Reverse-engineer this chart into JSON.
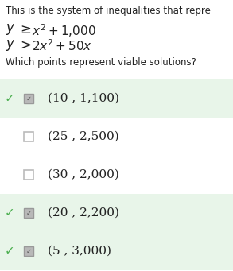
{
  "title_text": "This is the system of inequalities that repre",
  "question": "Which points represent viable solutions?",
  "options": [
    {
      "label": "(10 , 1,100)",
      "checked": true,
      "correct": true
    },
    {
      "label": "(25 , 2,500)",
      "checked": false,
      "correct": false
    },
    {
      "label": "(30 , 2,000)",
      "checked": false,
      "correct": false
    },
    {
      "label": "(20 , 2,200)",
      "checked": true,
      "correct": true
    },
    {
      "label": "(5 , 3,000)",
      "checked": true,
      "correct": true
    }
  ],
  "bg_color": "#ffffff",
  "highlight_color": "#e8f5e9",
  "check_color": "#4caf50",
  "checkbox_checked_fill": "#b8b8b8",
  "checkbox_checked_edge": "#999999",
  "checkbox_unchecked_fill": "#ffffff",
  "checkbox_unchecked_edge": "#bbbbbb",
  "text_color": "#222222",
  "title_fontsize": 8.5,
  "eq_fontsize": 11,
  "question_fontsize": 8.5,
  "option_fontsize": 11
}
